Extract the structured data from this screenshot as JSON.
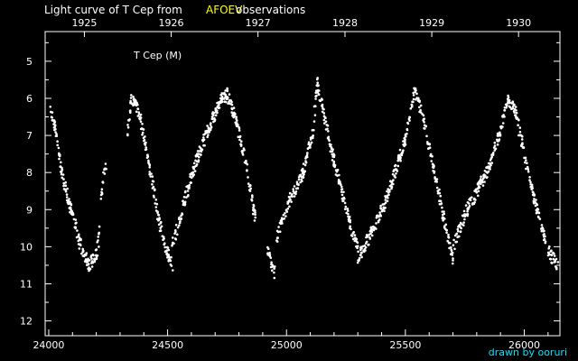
{
  "title": {
    "prefix": "Light curve of T Cep from",
    "highlight": "AFOEV",
    "suffix": "observations",
    "highlight_color": "#ffff00"
  },
  "credit": "drawn by ooruri",
  "colors": {
    "background": "#000000",
    "foreground": "#ffffff",
    "accent": "#ffff00",
    "credit": "#00e5ff"
  },
  "chart_data": {
    "type": "scatter",
    "annotation": "T Cep (M)",
    "xlim": [
      23985,
      26150
    ],
    "ylim": [
      12.4,
      4.2
    ],
    "y_inverted": true,
    "grid": false,
    "x_ticks": [
      24000,
      24500,
      25000,
      25500,
      26000
    ],
    "y_ticks": [
      5,
      6,
      7,
      8,
      9,
      10,
      11,
      12
    ],
    "top_axis": {
      "labels": [
        "1925",
        "1926",
        "1927",
        "1928",
        "1929",
        "1930"
      ],
      "jd": [
        24150,
        24515,
        24880,
        25246,
        25611,
        25976
      ]
    },
    "series": [
      {
        "marker_color": "#ffffff",
        "cycles": [
          {
            "x": [
              24005,
              24025,
              24055,
              24090,
              24130,
              24170,
              24200,
              24215
            ],
            "y": [
              6.3,
              6.7,
              8.0,
              8.9,
              9.9,
              10.5,
              10.2,
              9.6
            ]
          },
          {
            "x": [
              24220,
              24240
            ],
            "y": [
              8.6,
              7.8
            ]
          },
          {
            "x": [
              24330,
              24345,
              24360,
              24380,
              24420,
              24460,
              24500,
              24520
            ],
            "y": [
              7.1,
              6.0,
              6.1,
              6.4,
              7.7,
              9.2,
              10.2,
              10.5
            ]
          },
          {
            "x": [
              24520,
              24570,
              24620,
              24680,
              24730,
              24750,
              24790,
              24830,
              24870
            ],
            "y": [
              10.0,
              8.8,
              7.7,
              6.7,
              6.0,
              5.9,
              6.6,
              7.8,
              9.3
            ]
          },
          {
            "x": [
              24920,
              24950
            ],
            "y": [
              10.1,
              10.7
            ]
          },
          {
            "x": [
              24960,
              25010,
              25070,
              25110,
              25130,
              25150,
              25200,
              25260,
              25300
            ],
            "y": [
              9.7,
              8.8,
              8.0,
              6.9,
              5.6,
              6.2,
              7.7,
              9.2,
              10.1
            ]
          },
          {
            "x": [
              25300,
              25360,
              25410,
              25450,
              25500,
              25540,
              25580,
              25620,
              25660,
              25700
            ],
            "y": [
              10.3,
              9.6,
              8.9,
              8.1,
              7.1,
              5.8,
              6.7,
              7.9,
              9.2,
              10.3
            ]
          },
          {
            "x": [
              25700,
              25760,
              25810,
              25850,
              25890,
              25930,
              25960,
              25990,
              26040,
              26090
            ],
            "y": [
              10.0,
              9.0,
              8.4,
              7.9,
              7.1,
              6.1,
              6.3,
              7.2,
              8.7,
              9.8
            ]
          },
          {
            "x": [
              26100,
              26140
            ],
            "y": [
              10.1,
              10.5
            ]
          }
        ]
      }
    ]
  }
}
